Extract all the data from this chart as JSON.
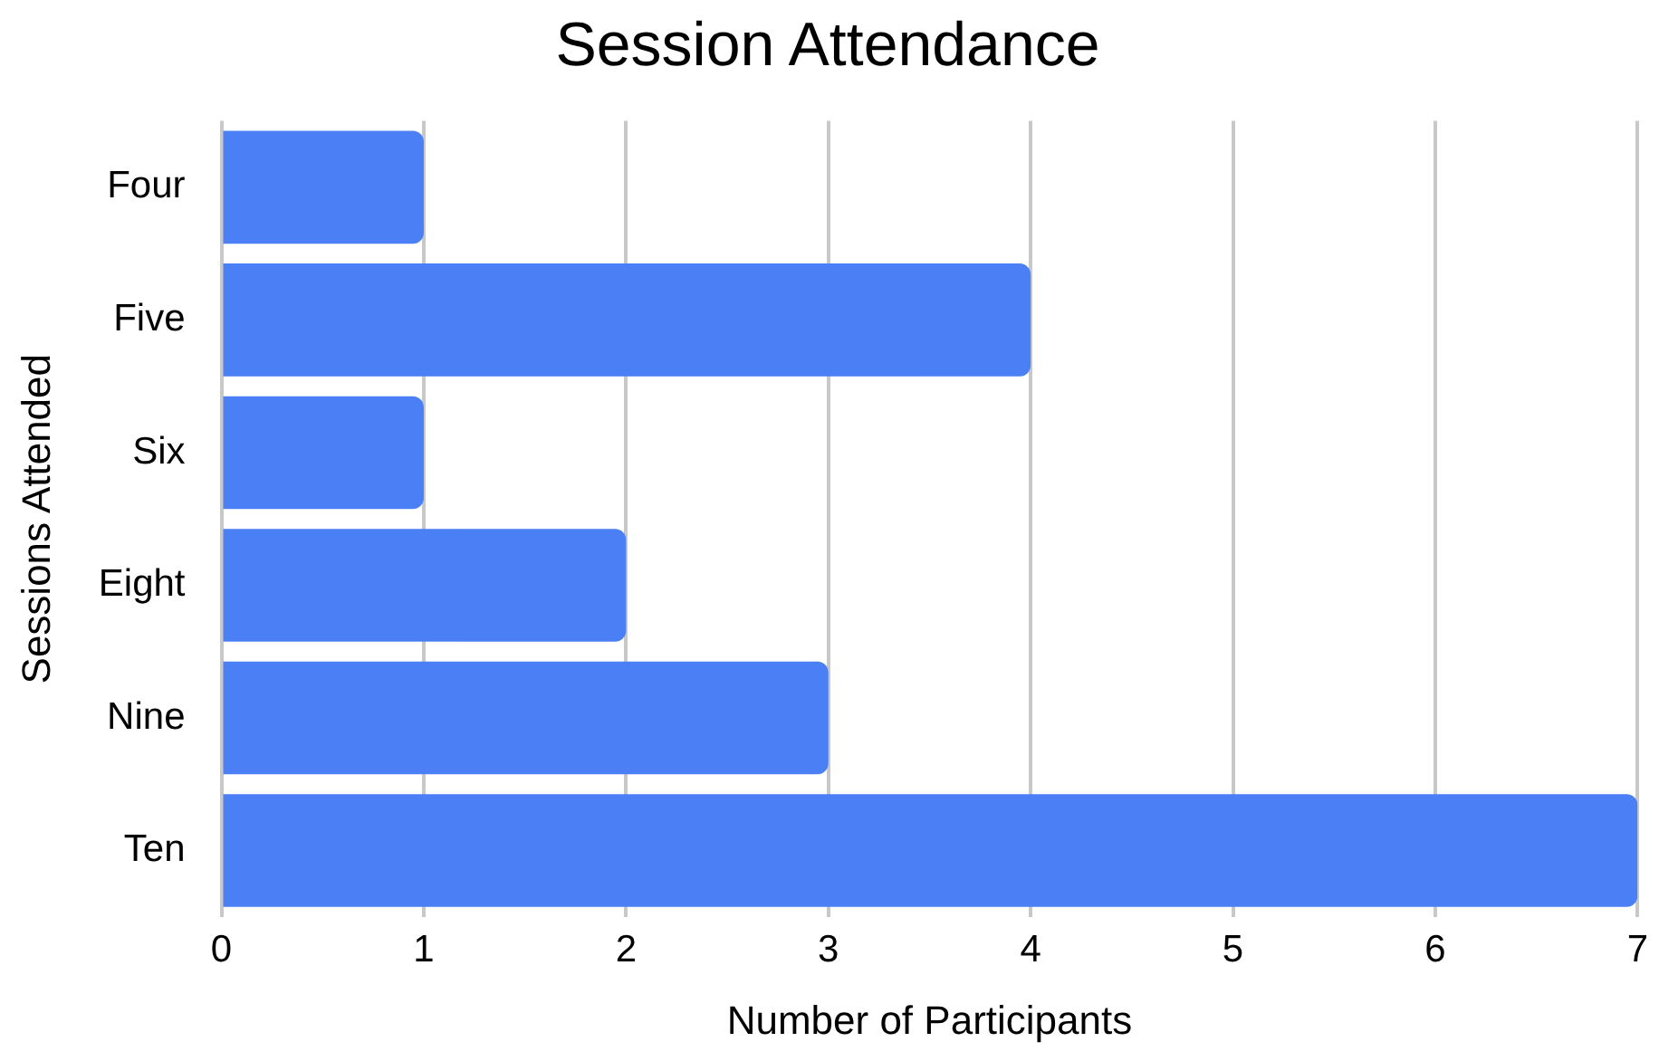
{
  "chart_data": {
    "type": "bar",
    "orientation": "horizontal",
    "title": "Session Attendance",
    "xlabel": "Number of Participants",
    "ylabel": "Sessions Attended",
    "categories": [
      "Four",
      "Five",
      "Six",
      "Eight",
      "Nine",
      "Ten"
    ],
    "values": [
      1,
      4,
      1,
      2,
      3,
      7
    ],
    "color": "#4a7ff5",
    "xlim": [
      0,
      7
    ],
    "xticks": [
      0,
      1,
      2,
      3,
      4,
      5,
      6,
      7
    ],
    "grid": "x",
    "legend": false
  }
}
